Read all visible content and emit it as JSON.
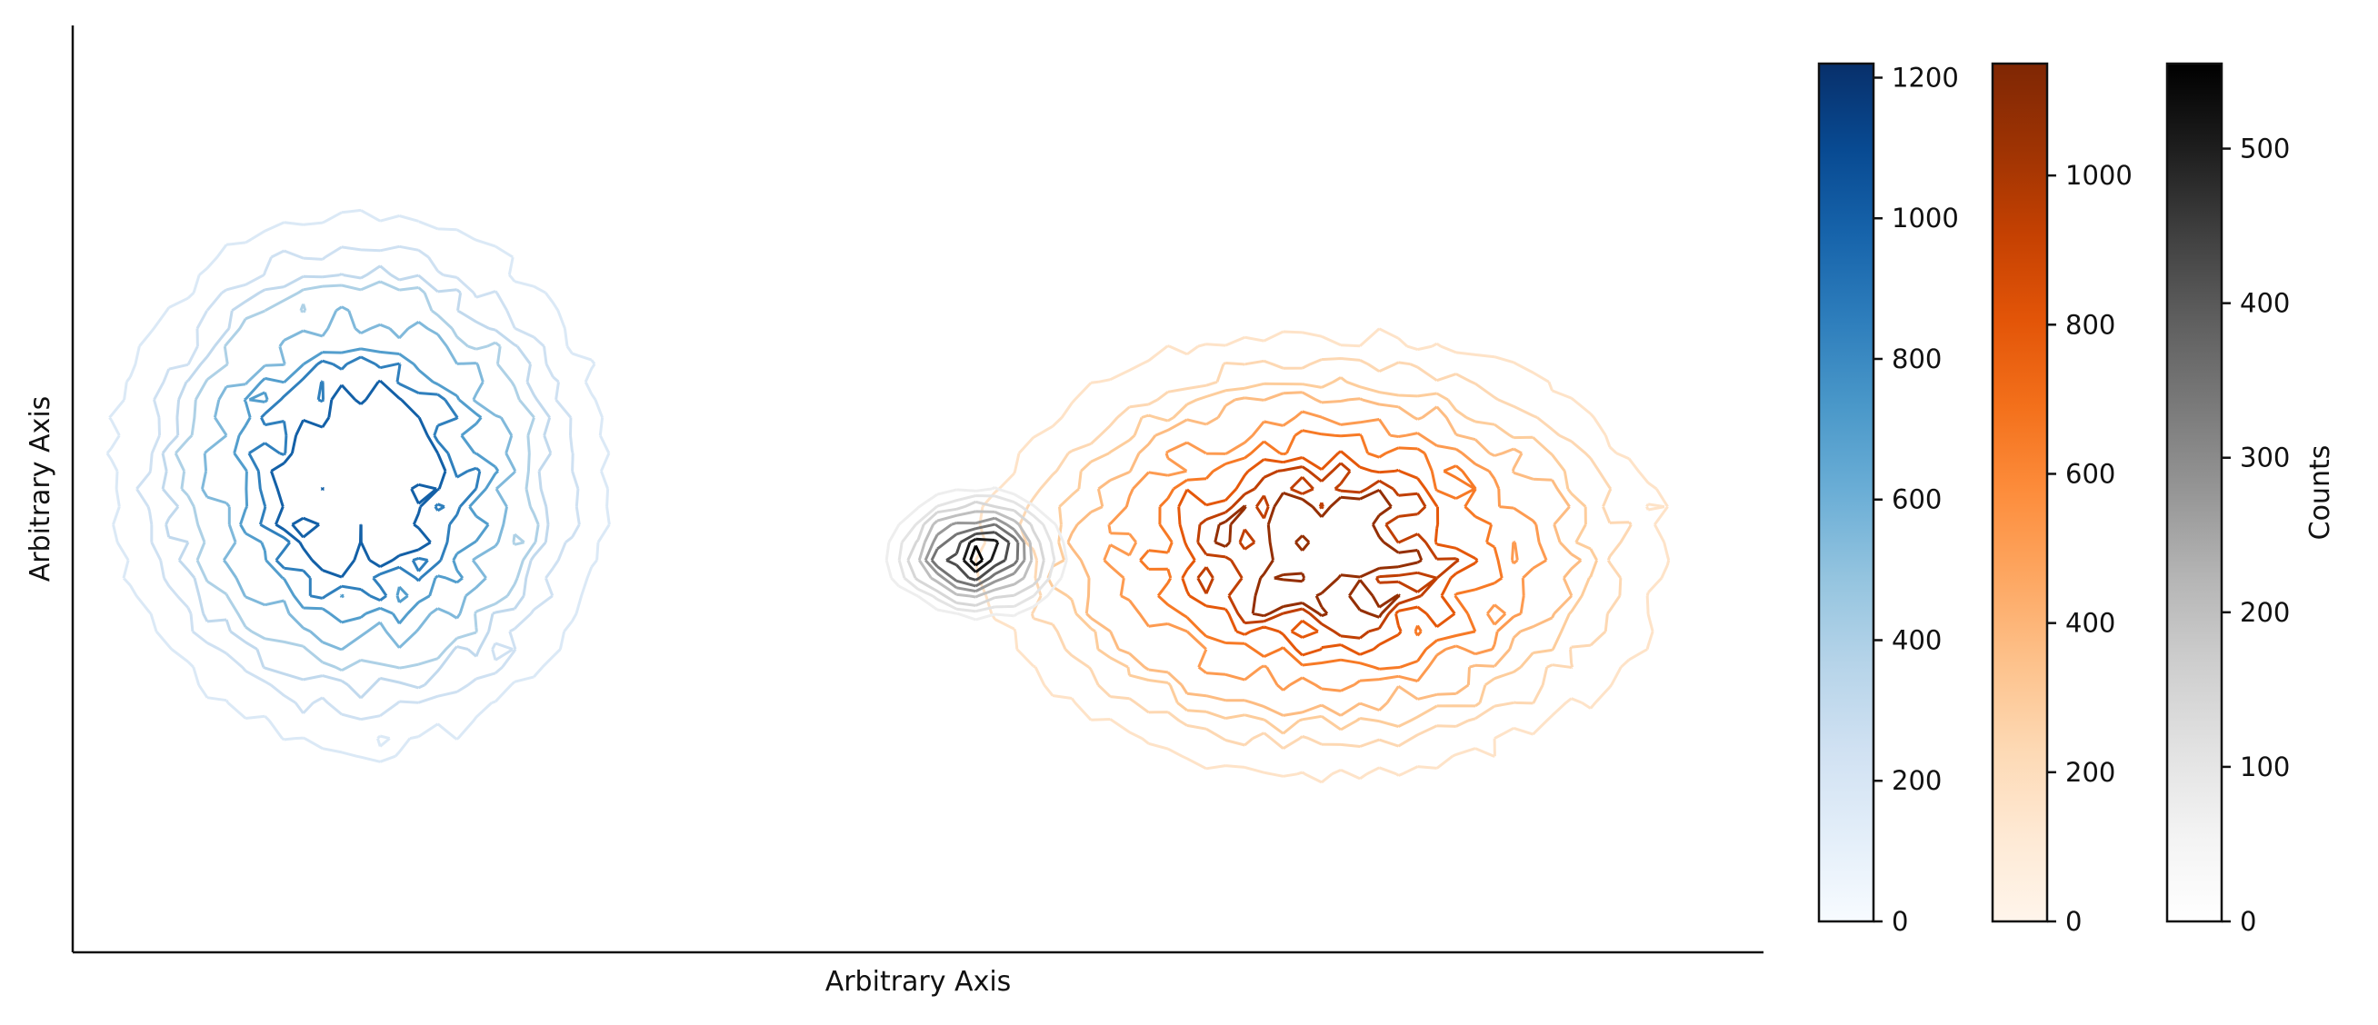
{
  "chart_data": {
    "type": "contour",
    "title": "",
    "xlabel": "Arbitrary Axis",
    "ylabel": "Arbitrary Axis",
    "x_ticks": "none",
    "y_ticks": "none",
    "grid": false,
    "series": [
      {
        "colormap": "Blues",
        "center": [
          0.17,
          0.49
        ],
        "spread": [
          0.13,
          0.26
        ],
        "peak": 1200,
        "levels": [
          75,
          150,
          225,
          300,
          450,
          600,
          750,
          900
        ],
        "colorbar": {
          "ticks": [
            0,
            200,
            400,
            600,
            800,
            1000,
            1200
          ],
          "max": 1220
        }
      },
      {
        "colormap": "Oranges",
        "center": [
          0.74,
          0.57
        ],
        "spread": [
          0.18,
          0.21
        ],
        "peak": 1150,
        "levels": [
          70,
          140,
          210,
          280,
          420,
          560,
          700,
          840,
          980
        ],
        "colorbar": {
          "ticks": [
            0,
            200,
            400,
            600,
            800,
            1000
          ],
          "max": 1150
        }
      },
      {
        "colormap": "Greys",
        "center": [
          0.535,
          0.57
        ],
        "spread": [
          0.045,
          0.06
        ],
        "peak": 560,
        "levels": [
          30,
          60,
          100,
          160,
          230,
          300,
          380,
          460,
          520
        ],
        "colorbar": {
          "ticks": [
            0,
            100,
            200,
            300,
            400,
            500
          ],
          "max": 555,
          "label": "Counts"
        }
      }
    ]
  }
}
